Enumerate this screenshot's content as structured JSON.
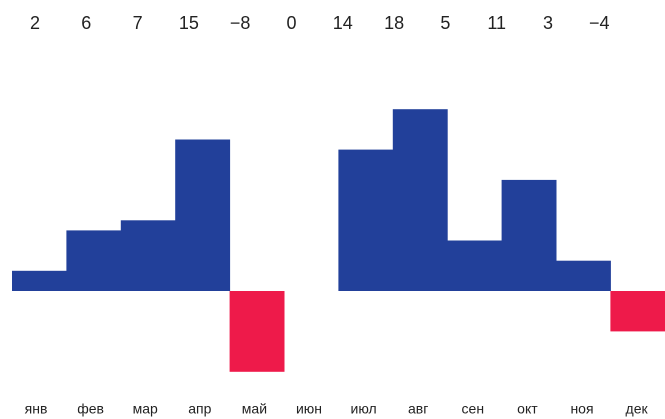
{
  "chart_data": {
    "type": "bar",
    "categories": [
      "янв",
      "фев",
      "мар",
      "апр",
      "май",
      "июн",
      "июл",
      "авг",
      "сен",
      "окт",
      "ноя",
      "дек"
    ],
    "values": [
      2,
      6,
      7,
      15,
      -8,
      0,
      14,
      18,
      5,
      11,
      3,
      -4
    ],
    "value_labels": [
      "2",
      "6",
      "7",
      "15",
      "−8",
      "0",
      "14",
      "18",
      "5",
      "11",
      "3",
      "−4"
    ],
    "color": "#22409a",
    "negative_color": "#ee1a4a"
  }
}
